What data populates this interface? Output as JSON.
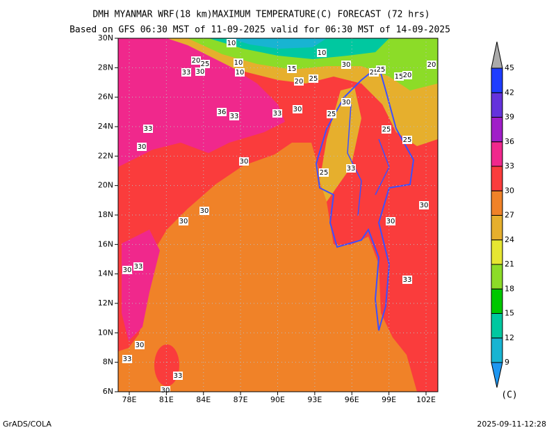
{
  "header": {
    "title": "DMH MYANMAR WRF(18 km)MAXIMUM TEMPERATURE(C) FORECAST (72 hrs)",
    "subtitle": "Based on GFS 06:30 MST of 11-09-2025 valid for 06:30 MST of 14-09-2025"
  },
  "map": {
    "lat_labels": [
      "30N",
      "28N",
      "26N",
      "24N",
      "22N",
      "20N",
      "18N",
      "16N",
      "14N",
      "12N",
      "10N",
      "8N",
      "6N"
    ],
    "lon_labels": [
      "78E",
      "81E",
      "84E",
      "87E",
      "90E",
      "93E",
      "96E",
      "99E",
      "102E"
    ],
    "contour_labels": [
      "10",
      "20",
      "25",
      "10",
      "10",
      "33",
      "30",
      "10",
      "15",
      "30",
      "25",
      "25",
      "15",
      "20",
      "20",
      "20",
      "25",
      "30",
      "30",
      "36",
      "33",
      "33",
      "25",
      "33",
      "25",
      "30",
      "25",
      "30",
      "25",
      "33",
      "30",
      "30",
      "30",
      "30",
      "30",
      "33",
      "33",
      "30",
      "33",
      "33",
      "30"
    ]
  },
  "colorbar": {
    "levels": [
      9,
      12,
      15,
      18,
      21,
      24,
      27,
      30,
      33,
      36,
      39,
      42,
      45
    ],
    "colors": [
      "#1e96f0",
      "#18b4d2",
      "#00c8a0",
      "#00c800",
      "#8cdc28",
      "#e6e632",
      "#e6af2d",
      "#f08228",
      "#fa3c3c",
      "#f0288c",
      "#a01ec8",
      "#6432dc",
      "#1e3cff",
      "#aaaaaa"
    ],
    "unit": "(C)"
  },
  "footer": {
    "left": "GrADS/COLA",
    "right": "2025-09-11-12:28"
  }
}
